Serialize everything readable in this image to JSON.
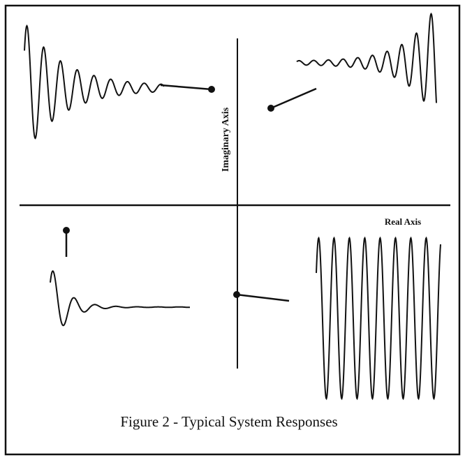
{
  "axes": {
    "imaginary": "Imaginary Axis",
    "real": "Real Axis"
  },
  "caption": "Figure 2 - Typical System Responses"
}
